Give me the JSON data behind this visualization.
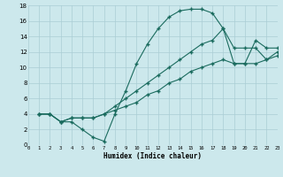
{
  "xlabel": "Humidex (Indice chaleur)",
  "bg_color": "#cce8ec",
  "grid_color": "#aacdd4",
  "line_color": "#1a6b5e",
  "xlim": [
    0,
    23
  ],
  "ylim": [
    0,
    18
  ],
  "xticks": [
    0,
    1,
    2,
    3,
    4,
    5,
    6,
    7,
    8,
    9,
    10,
    11,
    12,
    13,
    14,
    15,
    16,
    17,
    18,
    19,
    20,
    21,
    22,
    23
  ],
  "yticks": [
    0,
    2,
    4,
    6,
    8,
    10,
    12,
    14,
    16,
    18
  ],
  "line1_x": [
    1,
    2,
    3,
    4,
    5,
    6,
    7,
    8,
    9,
    10,
    11,
    12,
    13,
    14,
    15,
    16,
    17,
    18,
    19,
    20,
    21,
    22,
    23
  ],
  "line1_y": [
    4,
    4,
    3,
    3,
    2,
    1,
    0.5,
    4,
    7,
    10.5,
    13,
    15,
    16.5,
    17.3,
    17.5,
    17.5,
    17,
    15,
    12.5,
    12.5,
    12.5,
    11,
    11.5
  ],
  "line2_x": [
    1,
    2,
    3,
    4,
    5,
    6,
    7,
    8,
    9,
    10,
    11,
    12,
    13,
    14,
    15,
    16,
    17,
    18,
    19,
    20,
    21,
    22,
    23
  ],
  "line2_y": [
    4,
    4,
    3,
    3.5,
    3.5,
    3.5,
    4,
    5,
    6,
    7,
    8,
    9,
    10,
    11,
    12,
    13,
    13.5,
    15,
    10.5,
    10.5,
    13.5,
    12.5,
    12.5
  ],
  "line3_x": [
    1,
    2,
    3,
    4,
    5,
    6,
    7,
    8,
    9,
    10,
    11,
    12,
    13,
    14,
    15,
    16,
    17,
    18,
    19,
    20,
    21,
    22,
    23
  ],
  "line3_y": [
    4,
    4,
    3,
    3.5,
    3.5,
    3.5,
    4,
    4.5,
    5,
    5.5,
    6.5,
    7,
    8,
    8.5,
    9.5,
    10,
    10.5,
    11,
    10.5,
    10.5,
    10.5,
    11,
    12
  ]
}
